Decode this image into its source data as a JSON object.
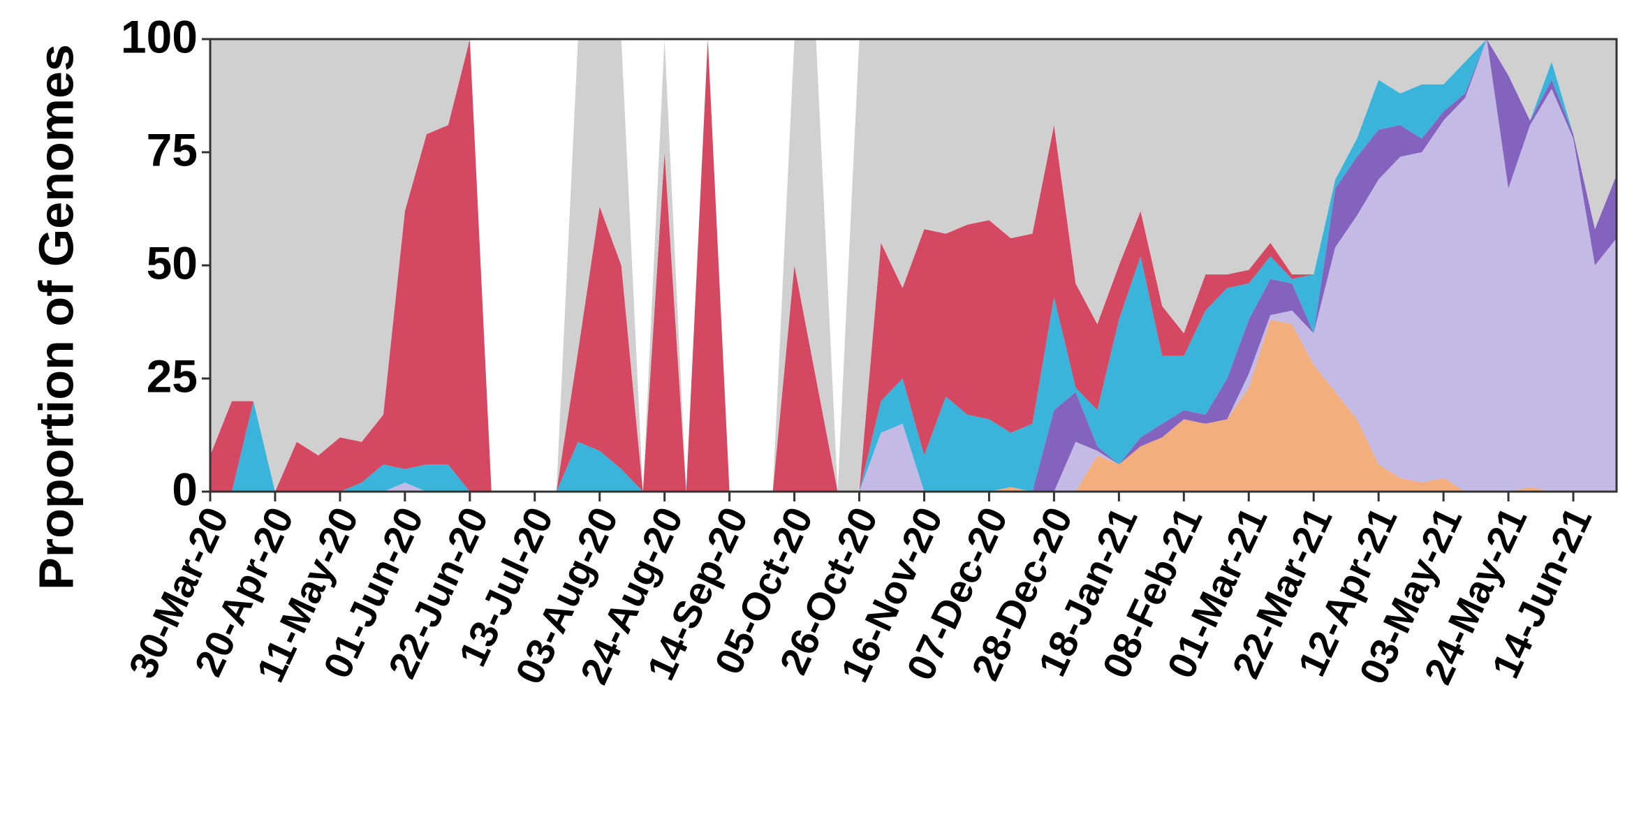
{
  "chart_data": {
    "type": "stacked_area",
    "y_label": "Proportion of Genomes",
    "categories": [
      "30-Mar-20",
      null,
      null,
      "20-Apr-20",
      null,
      null,
      "11-May-20",
      null,
      null,
      "01-Jun-20",
      null,
      null,
      "22-Jun-20",
      null,
      null,
      "13-Jul-20",
      null,
      null,
      "03-Aug-20",
      null,
      null,
      "24-Aug-20",
      null,
      null,
      "14-Sep-20",
      null,
      null,
      "05-Oct-20",
      null,
      null,
      "26-Oct-20",
      null,
      null,
      "16-Nov-20",
      null,
      null,
      "07-Dec-20",
      null,
      null,
      "28-Dec-20",
      null,
      null,
      "18-Jan-21",
      null,
      null,
      "08-Feb-21",
      null,
      null,
      "01-Mar-21",
      null,
      null,
      "22-Mar-21",
      null,
      null,
      "12-Apr-21",
      null,
      null,
      "03-May-21",
      null,
      null,
      "24-May-21",
      null,
      null,
      "14-Jun-21",
      null,
      null
    ],
    "series": [
      {
        "color": "#f2ae7d",
        "values": [
          0,
          0,
          0,
          0,
          0,
          0,
          0,
          0,
          0,
          0,
          0,
          0,
          0,
          0,
          0,
          0,
          0,
          0,
          0,
          0,
          0,
          0,
          0,
          0,
          0,
          0,
          0,
          0,
          0,
          0,
          0,
          0,
          0,
          0,
          0,
          0,
          0,
          1,
          0,
          0,
          0,
          8,
          6,
          10,
          12,
          16,
          15,
          16,
          23,
          38,
          37,
          28,
          22,
          16,
          6,
          3,
          2,
          3,
          0,
          0,
          0,
          1,
          0,
          0,
          0,
          0
        ]
      },
      {
        "color": "#c3bbe5",
        "values": [
          0,
          0,
          0,
          0,
          0,
          0,
          0,
          0,
          0,
          2,
          0,
          0,
          0,
          0,
          0,
          0,
          0,
          0,
          0,
          0,
          0,
          0,
          0,
          0,
          0,
          0,
          0,
          0,
          0,
          0,
          0,
          13,
          15,
          0,
          0,
          0,
          0,
          0,
          0,
          0,
          11,
          1,
          0,
          0,
          0,
          0,
          0,
          0,
          3,
          1,
          3,
          7,
          32,
          45,
          63,
          71,
          73,
          79,
          87,
          100,
          67,
          80,
          89,
          78,
          50,
          56
        ]
      },
      {
        "color": "#8463be",
        "values": [
          0,
          0,
          0,
          0,
          0,
          0,
          0,
          0,
          0,
          0,
          0,
          0,
          0,
          0,
          0,
          0,
          0,
          0,
          0,
          0,
          0,
          0,
          0,
          0,
          0,
          0,
          0,
          0,
          0,
          0,
          0,
          0,
          0,
          0,
          0,
          0,
          0,
          0,
          0,
          18,
          11,
          1,
          0,
          2,
          3,
          2,
          2,
          9,
          12,
          8,
          6,
          0,
          13,
          13,
          11,
          7,
          3,
          2,
          1,
          0,
          25,
          1,
          2,
          1,
          8,
          14
        ]
      },
      {
        "color": "#3ab4da",
        "values": [
          0,
          0,
          20,
          0,
          0,
          0,
          0,
          2,
          6,
          3,
          6,
          6,
          0,
          0,
          0,
          0,
          0,
          11,
          9,
          5,
          0,
          0,
          0,
          0,
          0,
          0,
          0,
          0,
          0,
          0,
          0,
          7,
          10,
          8,
          21,
          17,
          16,
          12,
          15,
          25,
          1,
          8,
          32,
          40,
          15,
          12,
          23,
          20,
          8,
          5,
          1,
          13,
          2,
          4,
          11,
          7,
          12,
          6,
          7,
          0,
          0,
          0,
          4,
          0,
          0,
          0
        ]
      },
      {
        "color": "#d54862",
        "values": [
          8,
          20,
          0,
          0,
          11,
          8,
          12,
          9,
          11,
          57,
          73,
          75,
          100,
          0,
          0,
          0,
          0,
          20,
          54,
          45,
          0,
          75,
          0,
          100,
          0,
          0,
          0,
          50,
          25,
          0,
          0,
          35,
          20,
          50,
          36,
          42,
          44,
          43,
          42,
          38,
          23,
          19,
          12,
          10,
          11,
          5,
          8,
          3,
          3,
          3,
          1,
          0,
          0,
          0,
          0,
          0,
          0,
          0,
          0,
          0,
          0,
          0,
          0,
          0,
          0,
          0
        ]
      },
      {
        "color": "#d0d0d0",
        "values": [
          92,
          80,
          80,
          100,
          89,
          92,
          88,
          89,
          83,
          38,
          21,
          19,
          0,
          0,
          0,
          0,
          0,
          69,
          37,
          50,
          0,
          25,
          0,
          0,
          0,
          0,
          0,
          50,
          75,
          0,
          100,
          45,
          55,
          42,
          43,
          41,
          40,
          44,
          43,
          19,
          54,
          63,
          50,
          38,
          59,
          65,
          52,
          52,
          51,
          45,
          52,
          52,
          31,
          22,
          9,
          12,
          10,
          10,
          5,
          0,
          8,
          18,
          5,
          21,
          42,
          30
        ]
      }
    ],
    "ylim": [
      0,
      100
    ],
    "yticks": [
      0,
      25,
      50,
      75,
      100
    ]
  }
}
